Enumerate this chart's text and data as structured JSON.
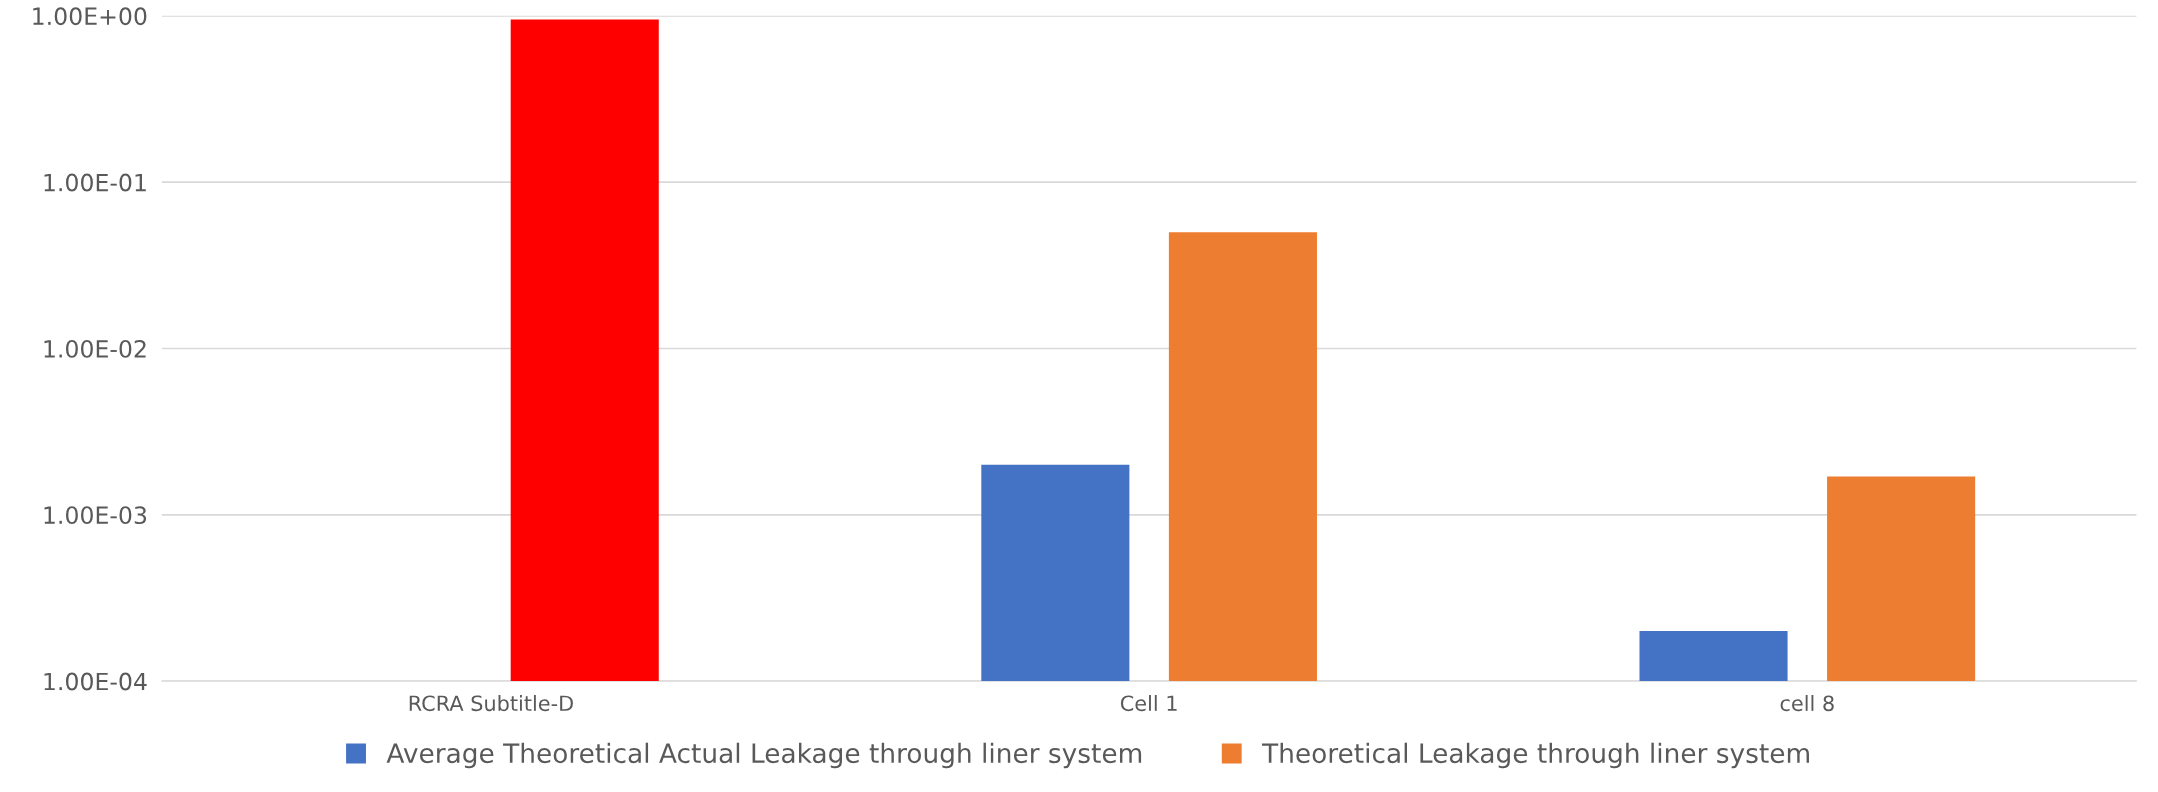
{
  "chart_data": {
    "type": "bar",
    "categories": [
      "RCRA Subtitle-D",
      "Cell 1",
      "cell 8"
    ],
    "series": [
      {
        "name": "Average Theoretical Actual Leakage through liner system",
        "color": "#4472c4",
        "values": [
          null,
          0.002,
          0.0002
        ]
      },
      {
        "name": "Theoretical Leakage through liner system",
        "color": "#ed7d31",
        "colors": [
          "#ff0000",
          "#ed7d31",
          "#ed7d31"
        ],
        "values": [
          0.95,
          0.05,
          0.0017
        ]
      }
    ],
    "log": true,
    "ylim": [
      0.0001,
      1
    ],
    "yticks": [
      {
        "value": 0.0001,
        "label": "1.00E-04"
      },
      {
        "value": 0.001,
        "label": "1.00E-03"
      },
      {
        "value": 0.01,
        "label": "1.00E-02"
      },
      {
        "value": 0.1,
        "label": "1.00E-01"
      },
      {
        "value": 1,
        "label": "1.00E+00"
      }
    ],
    "grid": "y",
    "legend": "bottom"
  }
}
